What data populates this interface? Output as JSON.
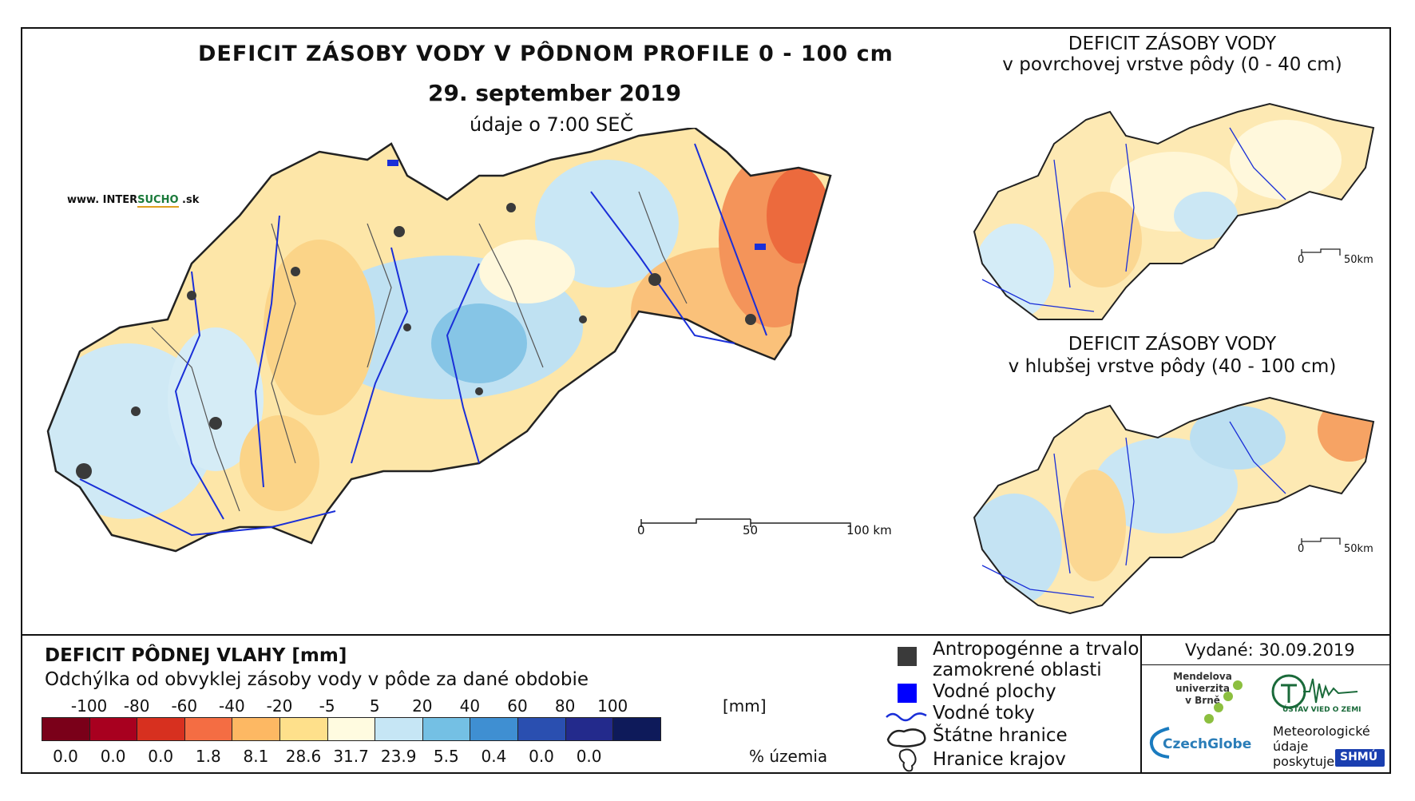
{
  "header": {
    "title": "DEFICIT ZÁSOBY VODY V PÔDNOM PROFILE 0 - 100 cm",
    "date": "29. september 2019",
    "note": "údaje o 7:00 SEČ"
  },
  "brand": {
    "prefix": "www. INTER",
    "accent": "SUCHO",
    "suffix": " .sk"
  },
  "main_map": {
    "scale": {
      "zero": "0",
      "mid": "50",
      "end": "100 km"
    }
  },
  "inset_top": {
    "title_line1": "DEFICIT ZÁSOBY VODY",
    "title_line2": "v povrchovej vrstve pôdy (0 - 40 cm)",
    "scale": {
      "zero": "0",
      "end": "50km"
    }
  },
  "inset_bottom": {
    "title_line1": "DEFICIT ZÁSOBY VODY",
    "title_line2": "v hlubšej vrstve pôdy (40 - 100 cm)",
    "scale": {
      "zero": "0",
      "end": "50km"
    }
  },
  "legend": {
    "title": "DEFICIT PÔDNEJ VLAHY [mm]",
    "subtitle": "Odchýlka od obvyklej zásoby vody v pôde za dané obdobie",
    "ticks": [
      "-100",
      "-80",
      "-60",
      "-40",
      "-20",
      "-5",
      "5",
      "20",
      "40",
      "60",
      "80",
      "100"
    ],
    "unit": "[mm]",
    "colors": [
      "#7a0019",
      "#a8001f",
      "#d7301f",
      "#f46d43",
      "#fdb863",
      "#fee08b",
      "#fffbe0",
      "#c6e6f5",
      "#74c0e4",
      "#3f8fd2",
      "#2a4fb0",
      "#232a8c",
      "#0e1a5a"
    ],
    "percentages": [
      "0.0",
      "0.0",
      "0.0",
      "1.8",
      "8.1",
      "28.6",
      "31.7",
      "23.9",
      "5.5",
      "0.4",
      "0.0",
      "0.0"
    ],
    "pct_unit": "% územia"
  },
  "symbols": {
    "urban_line1": "Antropogénne a trvalo",
    "urban_line2": "zamokrené oblasti",
    "water": "Vodné plochy",
    "rivers": "Vodné toky",
    "borders": "Štátne hranice",
    "regions": "Hranice krajov"
  },
  "footer": {
    "issued": "Vydané: 30.09.2019",
    "mendel_line1": "Mendelova",
    "mendel_line2": "univerzita",
    "mendel_line3": "v Brně",
    "czechglobe": "CzechGlobe",
    "ustav": "ÚSTAV VIED O ZEMI",
    "meteo_line1": "Meteorologické",
    "meteo_line2": "údaje",
    "meteo_line3": "poskytuje:",
    "shmu": "SHMÚ"
  }
}
